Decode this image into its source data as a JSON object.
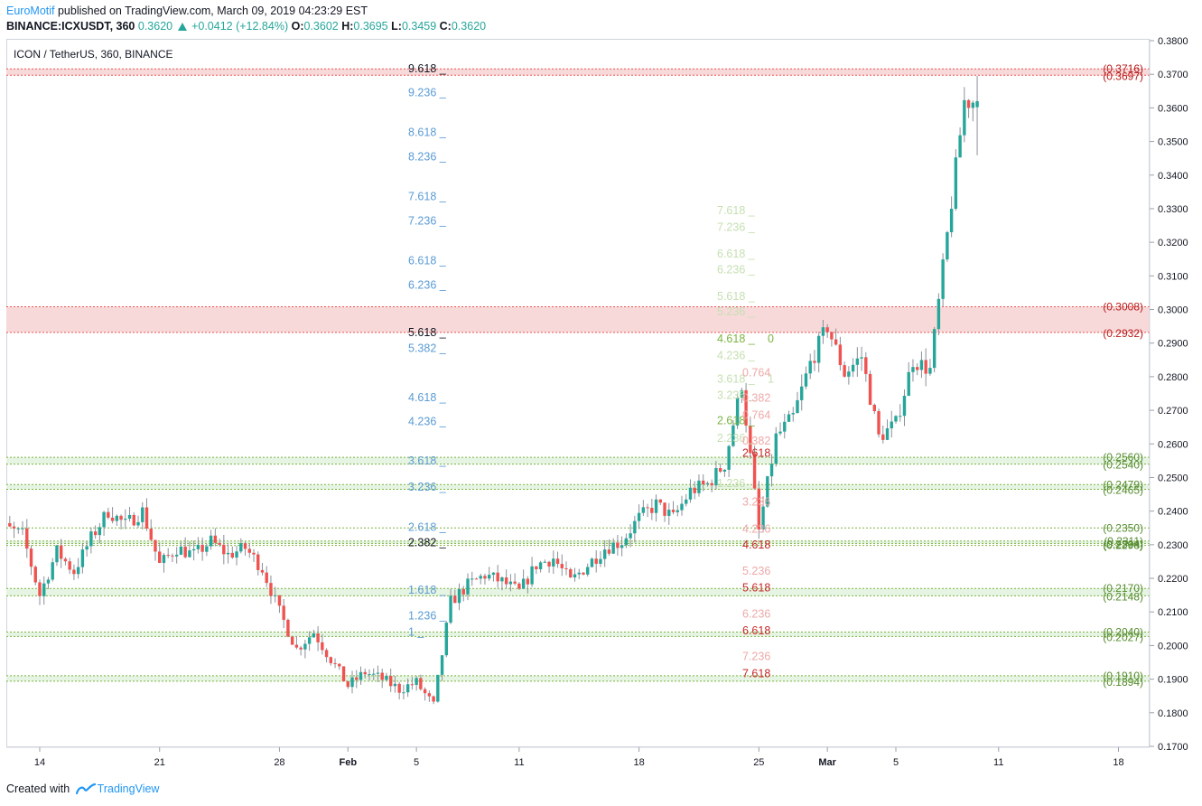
{
  "header": {
    "author": "EuroMotif",
    "published_text": "published on TradingView.com, March 09, 2019 04:23:29 EST",
    "symbol_line": "BINANCE:ICXUSDT, 360",
    "last": "0.3620",
    "change": "+0.0412 (+12.84%)",
    "open_label": "O:",
    "open": "0.3602",
    "high_label": "H:",
    "high": "0.3695",
    "low_label": "L:",
    "low": "0.3459",
    "close_label": "C:",
    "close": "0.3620"
  },
  "panel_title": "ICON / TetherUS, 360, BINANCE",
  "footer": {
    "created_with": "Created with",
    "brand": "TradingView"
  },
  "colors": {
    "up": "#26a69a",
    "down": "#ef5350",
    "red_zone": "#f7d9da",
    "green_zone": "#e6f4e3",
    "fib_blue": "#5b9bd5",
    "fib_green": "#7cb342",
    "fib_red": "#c62828",
    "price_red": "#b71c1c",
    "price_green": "#558b2f"
  },
  "chart_data": {
    "type": "candlestick",
    "ylim": [
      0.17,
      0.38
    ],
    "y_ticks": [
      "0.1700",
      "0.1800",
      "0.1900",
      "0.2000",
      "0.2100",
      "0.2200",
      "0.2300",
      "0.2400",
      "0.2500",
      "0.2600",
      "0.2700",
      "0.2800",
      "0.2900",
      "0.3000",
      "0.3100",
      "0.3200",
      "0.3300",
      "0.3400",
      "0.3500",
      "0.3600",
      "0.3700",
      "0.3800"
    ],
    "x_ticks": [
      {
        "label": "14",
        "day": 14
      },
      {
        "label": "21",
        "day": 21
      },
      {
        "label": "28",
        "day": 28
      },
      {
        "label": "Feb",
        "day": 32,
        "bold": true
      },
      {
        "label": "5",
        "day": 36
      },
      {
        "label": "11",
        "day": 42
      },
      {
        "label": "18",
        "day": 49
      },
      {
        "label": "25",
        "day": 56
      },
      {
        "label": "Mar",
        "day": 60,
        "bold": true
      },
      {
        "label": "5",
        "day": 64
      },
      {
        "label": "11",
        "day": 70
      },
      {
        "label": "18",
        "day": 77
      }
    ],
    "price_path": [
      [
        "2019-01-12",
        0.235
      ],
      [
        "2019-01-13",
        0.233
      ],
      [
        "2019-01-14",
        0.215
      ],
      [
        "2019-01-15",
        0.228
      ],
      [
        "2019-01-16",
        0.222
      ],
      [
        "2019-01-17",
        0.232
      ],
      [
        "2019-01-18",
        0.24
      ],
      [
        "2019-01-19",
        0.236
      ],
      [
        "2019-01-20",
        0.24
      ],
      [
        "2019-01-21",
        0.224
      ],
      [
        "2019-01-22",
        0.229
      ],
      [
        "2019-01-23",
        0.227
      ],
      [
        "2019-01-24",
        0.231
      ],
      [
        "2019-01-25",
        0.227
      ],
      [
        "2019-01-26",
        0.229
      ],
      [
        "2019-01-27",
        0.223
      ],
      [
        "2019-01-28",
        0.21
      ],
      [
        "2019-01-29",
        0.199
      ],
      [
        "2019-01-30",
        0.204
      ],
      [
        "2019-01-31",
        0.196
      ],
      [
        "2019-02-01",
        0.188
      ],
      [
        "2019-02-02",
        0.192
      ],
      [
        "2019-02-03",
        0.19
      ],
      [
        "2019-02-04",
        0.187
      ],
      [
        "2019-02-05",
        0.189
      ],
      [
        "2019-02-06",
        0.182
      ],
      [
        "2019-02-07",
        0.213
      ],
      [
        "2019-02-08",
        0.218
      ],
      [
        "2019-02-09",
        0.221
      ],
      [
        "2019-02-10",
        0.219
      ],
      [
        "2019-02-11",
        0.216
      ],
      [
        "2019-02-12",
        0.224
      ],
      [
        "2019-02-13",
        0.226
      ],
      [
        "2019-02-14",
        0.219
      ],
      [
        "2019-02-15",
        0.224
      ],
      [
        "2019-02-16",
        0.229
      ],
      [
        "2019-02-17",
        0.231
      ],
      [
        "2019-02-18",
        0.238
      ],
      [
        "2019-02-19",
        0.242
      ],
      [
        "2019-02-20",
        0.238
      ],
      [
        "2019-02-21",
        0.246
      ],
      [
        "2019-02-22",
        0.248
      ],
      [
        "2019-02-23",
        0.254
      ],
      [
        "2019-02-24",
        0.278
      ],
      [
        "2019-02-25",
        0.234
      ],
      [
        "2019-02-26",
        0.262
      ],
      [
        "2019-02-27",
        0.268
      ],
      [
        "2019-02-28",
        0.284
      ],
      [
        "2019-03-01",
        0.295
      ],
      [
        "2019-03-02",
        0.281
      ],
      [
        "2019-03-03",
        0.286
      ],
      [
        "2019-03-04",
        0.262
      ],
      [
        "2019-03-05",
        0.266
      ],
      [
        "2019-03-06",
        0.285
      ],
      [
        "2019-03-07",
        0.282
      ],
      [
        "2019-03-08",
        0.322
      ],
      [
        "2019-03-09",
        0.362
      ]
    ],
    "last_candle": {
      "open": 0.3602,
      "high": 0.3695,
      "low": 0.3459,
      "close": 0.362
    },
    "zones": [
      {
        "top": 0.3716,
        "bottom": 0.3697,
        "color": "red",
        "top_label": "(0.3716)",
        "bottom_label": "(0.3697)"
      },
      {
        "top": 0.3008,
        "bottom": 0.2932,
        "color": "red",
        "top_label": "(0.3008)",
        "bottom_label": "(0.2932)"
      },
      {
        "top": 0.256,
        "bottom": 0.254,
        "color": "green",
        "top_label": "(0.2560)",
        "bottom_label": "(0.2540)"
      },
      {
        "top": 0.2479,
        "bottom": 0.2465,
        "color": "green",
        "top_label": "(0.2479)",
        "bottom_label": "(0.2465)"
      },
      {
        "top": 0.235,
        "bottom": 0.235,
        "color": "green",
        "top_label": "(0.2350)",
        "bottom_label": ""
      },
      {
        "top": 0.2311,
        "bottom": 0.2304,
        "color": "green",
        "top_label": "(0.2311)",
        "bottom_label": "(0.2304)"
      },
      {
        "top": 0.2298,
        "bottom": 0.2298,
        "color": "green",
        "top_label": "(0.2298)",
        "bottom_label": ""
      },
      {
        "top": 0.217,
        "bottom": 0.2148,
        "color": "green",
        "top_label": "(0.2170)",
        "bottom_label": "(0.2148)"
      },
      {
        "top": 0.204,
        "bottom": 0.2027,
        "color": "green",
        "top_label": "(0.2040)",
        "bottom_label": "(0.2027)"
      },
      {
        "top": 0.191,
        "bottom": 0.1894,
        "color": "green",
        "top_label": "(0.1910)",
        "bottom_label": "(0.1894)"
      }
    ],
    "fib_blue": [
      {
        "label": "9.618",
        "price": 0.3716,
        "dark": true
      },
      {
        "label": "9.236",
        "price": 0.3645
      },
      {
        "label": "8.618",
        "price": 0.3527
      },
      {
        "label": "8.236",
        "price": 0.3455
      },
      {
        "label": "7.618",
        "price": 0.3336
      },
      {
        "label": "7.236",
        "price": 0.3263
      },
      {
        "label": "6.618",
        "price": 0.3145
      },
      {
        "label": "6.236",
        "price": 0.3072
      },
      {
        "label": "5.618",
        "price": 0.2932,
        "dark": true
      },
      {
        "label": "5.382",
        "price": 0.2884
      },
      {
        "label": "4.618",
        "price": 0.2738
      },
      {
        "label": "4.236",
        "price": 0.2666
      },
      {
        "label": "3.618",
        "price": 0.255
      },
      {
        "label": "3.236",
        "price": 0.2472
      },
      {
        "label": "2.618",
        "price": 0.2352
      },
      {
        "label": "2.382",
        "price": 0.2306,
        "dark": true
      },
      {
        "label": "1.618",
        "price": 0.2165
      },
      {
        "label": "1.236",
        "price": 0.2088
      },
      {
        "label": "1",
        "price": 0.204
      }
    ],
    "fib_green": [
      {
        "label": "7.618",
        "price": 0.3295
      },
      {
        "label": "7.236",
        "price": 0.3245
      },
      {
        "label": "6.618",
        "price": 0.3165
      },
      {
        "label": "6.236",
        "price": 0.3118
      },
      {
        "label": "5.618",
        "price": 0.3039
      },
      {
        "label": "5.236",
        "price": 0.2993
      },
      {
        "label": "4.618",
        "price": 0.2913,
        "extra": "0",
        "dark": true
      },
      {
        "label": "4.236",
        "price": 0.2863
      },
      {
        "label": "3.618",
        "price": 0.2793,
        "extra": "1"
      },
      {
        "label": "3.236",
        "price": 0.2745
      },
      {
        "label": "2.618",
        "price": 0.2669,
        "dark": true
      },
      {
        "label": "2.236",
        "price": 0.2617
      },
      {
        "label": "1.236",
        "price": 0.2482
      }
    ],
    "fib_red": [
      {
        "label": "0.764",
        "price": 0.2812
      },
      {
        "label": "0.382",
        "price": 0.2736
      },
      {
        "label": "0.764",
        "price": 0.2685
      },
      {
        "label": "0.382",
        "price": 0.2609
      },
      {
        "label": "2.618",
        "price": 0.2573,
        "dark": true
      },
      {
        "label": "3.236",
        "price": 0.2427
      },
      {
        "label": "4.236",
        "price": 0.2346
      },
      {
        "label": "4.618",
        "price": 0.23,
        "dark": true
      },
      {
        "label": "5.236",
        "price": 0.2222
      },
      {
        "label": "5.618",
        "price": 0.2172,
        "dark": true
      },
      {
        "label": "6.236",
        "price": 0.2094
      },
      {
        "label": "6.618",
        "price": 0.2044,
        "dark": true
      },
      {
        "label": "7.236",
        "price": 0.1967
      },
      {
        "label": "7.618",
        "price": 0.1917,
        "dark": true
      }
    ]
  }
}
